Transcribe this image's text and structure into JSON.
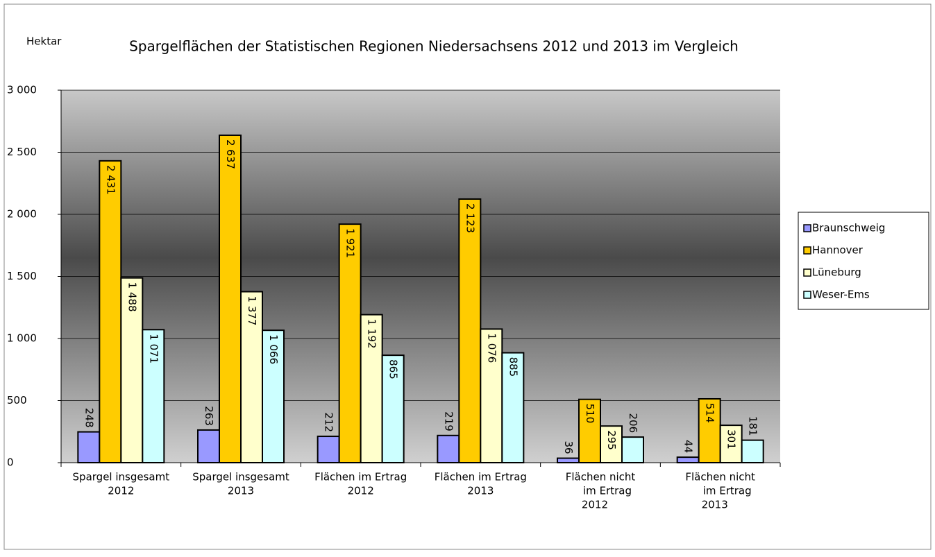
{
  "chart_data": {
    "type": "bar",
    "title": "Spargelflächen der Statistischen Regionen Niedersachsens 2012 und 2013 im Vergleich",
    "y_label": "Hektar",
    "categories": [
      [
        "Spargel insgesamt",
        "2012"
      ],
      [
        "Spargel insgesamt",
        "2013"
      ],
      [
        "Flächen im Ertrag",
        "2012"
      ],
      [
        "Flächen im Ertrag",
        "2013"
      ],
      [
        "Flächen nicht",
        "im Ertrag",
        "2012"
      ],
      [
        "Flächen nicht",
        "im Ertrag",
        "2013"
      ]
    ],
    "series": [
      {
        "name": "Braunschweig",
        "color": "#9999ff",
        "values": [
          248,
          263,
          212,
          219,
          36,
          44
        ],
        "value_labels": [
          "248",
          "263",
          "212",
          "219",
          "36",
          "44"
        ]
      },
      {
        "name": "Hannover",
        "color": "#ffcc00",
        "values": [
          2431,
          2637,
          1921,
          2123,
          510,
          514
        ],
        "value_labels": [
          "2 431",
          "2 637",
          "1 921",
          "2 123",
          "510",
          "514"
        ]
      },
      {
        "name": "Lüneburg",
        "color": "#ffffcc",
        "values": [
          1488,
          1377,
          1192,
          1076,
          295,
          301
        ],
        "value_labels": [
          "1 488",
          "1 377",
          "1 192",
          "1 076",
          "295",
          "301"
        ]
      },
      {
        "name": "Weser-Ems",
        "color": "#ccffff",
        "values": [
          1071,
          1066,
          865,
          885,
          206,
          181
        ],
        "value_labels": [
          "1 071",
          "1 066",
          "865",
          "885",
          "206",
          "181"
        ]
      }
    ],
    "ylim": [
      0,
      3000
    ],
    "yticks": [
      0,
      500,
      {
        "value": 1000,
        "label": "1 000"
      },
      {
        "value": 1500,
        "label": "1 500"
      },
      {
        "value": 2000,
        "label": "2 000"
      },
      {
        "value": 2500,
        "label": "2 500"
      },
      {
        "value": 3000,
        "label": "3 000"
      }
    ],
    "grid": true,
    "legend": "right"
  }
}
